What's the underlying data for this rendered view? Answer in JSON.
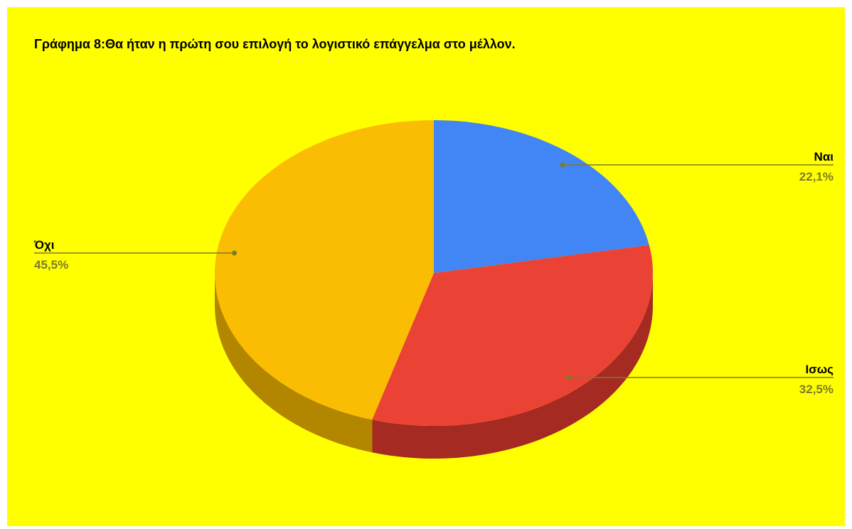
{
  "chart_data": {
    "type": "pie",
    "style": "3d",
    "title": "Γράφημα 8:Θα ήταν η πρώτη σου επιλογή το λογιστικό επάγγελμα στο μέλλον.",
    "background": "#ffff00",
    "slices": [
      {
        "label": "Ναι",
        "value": 22.1,
        "display": "22,1%",
        "color": "#4285f4",
        "side_color": "#2f5fae"
      },
      {
        "label": "Ισως",
        "value": 32.5,
        "display": "32,5%",
        "color": "#ea4335",
        "side_color": "#a52a22"
      },
      {
        "label": "Όχι",
        "value": 45.5,
        "display": "45,5%",
        "color": "#fbbc04",
        "side_color": "#b38600"
      }
    ],
    "leader_color": "#7c7c28"
  }
}
